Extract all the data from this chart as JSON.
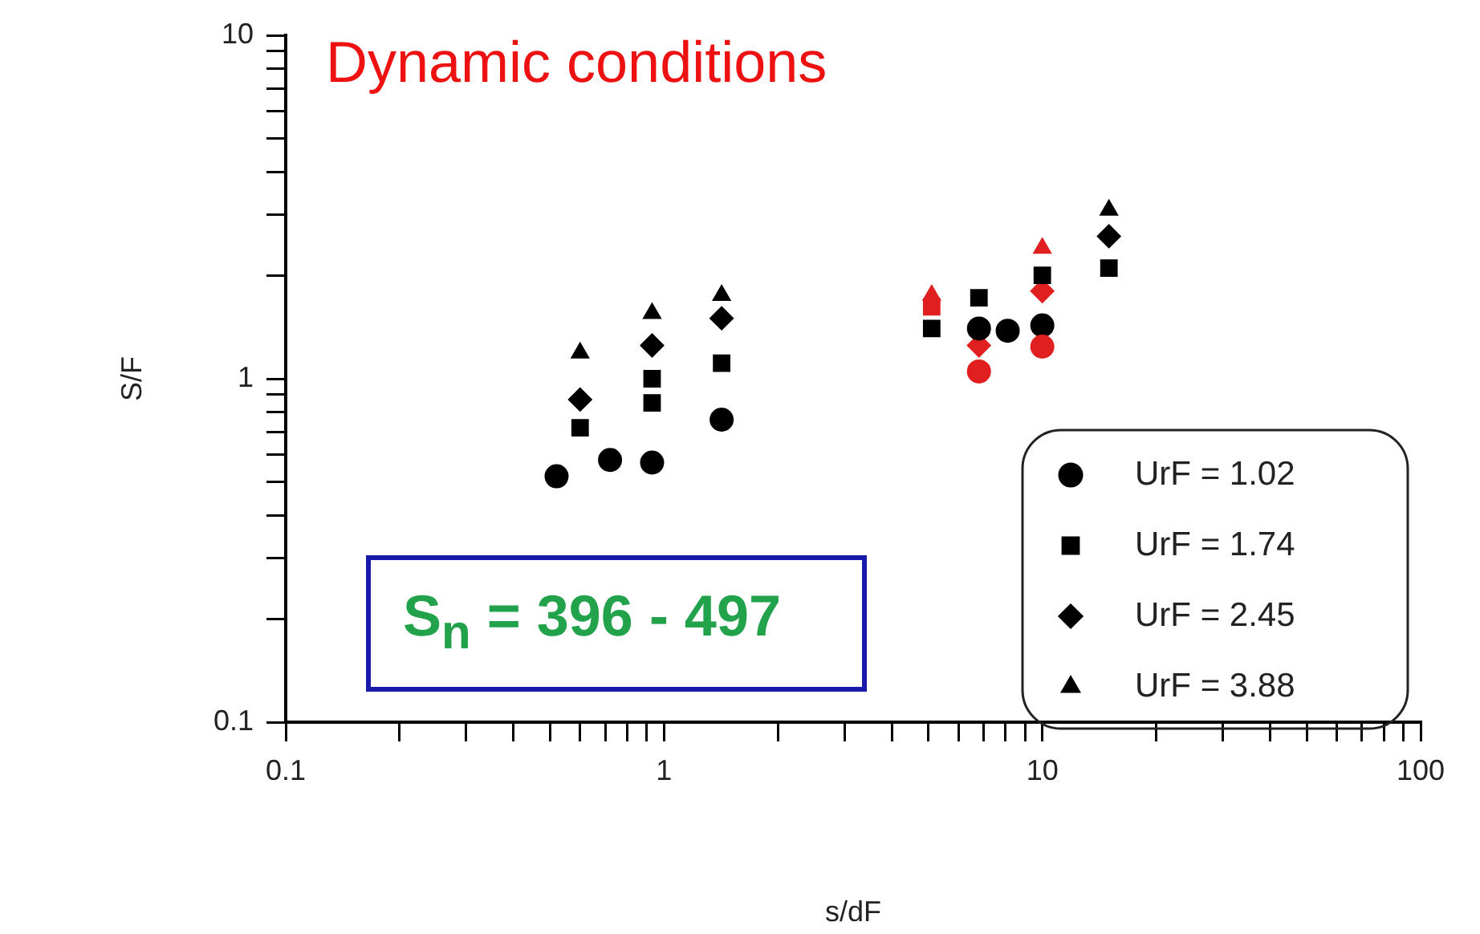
{
  "chart_data": {
    "type": "scatter",
    "xlabel": "s/dF",
    "ylabel": "S/F",
    "log": "xy",
    "grid": false,
    "legend": "bottom right",
    "xlim": [
      0.1,
      100
    ],
    "ylim": [
      0.1,
      10
    ],
    "xticks": [
      0.1,
      {
        "value": 0.2,
        "label": null
      },
      {
        "value": 0.3,
        "label": null
      },
      {
        "value": 0.4,
        "label": null
      },
      {
        "value": 0.5,
        "label": null
      },
      {
        "value": 0.6,
        "label": null
      },
      {
        "value": 0.7,
        "label": null
      },
      {
        "value": 0.8,
        "label": null
      },
      {
        "value": 0.9,
        "label": null
      },
      1,
      {
        "value": 2,
        "label": null
      },
      {
        "value": 3,
        "label": null
      },
      {
        "value": 4,
        "label": null
      },
      {
        "value": 5,
        "label": null
      },
      {
        "value": 6,
        "label": null
      },
      {
        "value": 7,
        "label": null
      },
      {
        "value": 8,
        "label": null
      },
      {
        "value": 9,
        "label": null
      },
      10,
      {
        "value": 20,
        "label": null
      },
      {
        "value": 30,
        "label": null
      },
      {
        "value": 40,
        "label": null
      },
      {
        "value": 50,
        "label": null
      },
      {
        "value": 60,
        "label": null
      },
      {
        "value": 70,
        "label": null
      },
      {
        "value": 80,
        "label": null
      },
      {
        "value": 90,
        "label": null
      },
      100
    ],
    "yticks": [
      0.1,
      {
        "value": 0.2,
        "label": null
      },
      {
        "value": 0.3,
        "label": null
      },
      {
        "value": 0.4,
        "label": null
      },
      {
        "value": 0.5,
        "label": null
      },
      {
        "value": 0.6,
        "label": null
      },
      {
        "value": 0.7,
        "label": null
      },
      {
        "value": 0.8,
        "label": null
      },
      {
        "value": 0.9,
        "label": null
      },
      1,
      {
        "value": 2,
        "label": null
      },
      {
        "value": 3,
        "label": null
      },
      {
        "value": 4,
        "label": null
      },
      {
        "value": 5,
        "label": null
      },
      {
        "value": 6,
        "label": null
      },
      {
        "value": 7,
        "label": null
      },
      {
        "value": 8,
        "label": null
      },
      {
        "value": 9,
        "label": null
      },
      10
    ],
    "annotations": [
      "Dynamic conditions",
      "S$_{n}$ = 396 - 497"
    ],
    "series": [
      {
        "name": "UrF = 1.02",
        "marker": "circle",
        "color": "#000000",
        "x": [
          0.52,
          0.72,
          0.93,
          1.42,
          6.8,
          8.1,
          6.8,
          10,
          10
        ],
        "values": [
          0.52,
          0.58,
          0.57,
          0.76,
          1.4,
          1.38,
          1.05,
          1.43,
          1.24
        ],
        "colors": [
          "#000000",
          "#000000",
          "#000000",
          "#000000",
          "#000000",
          "#000000",
          "#e02020",
          "#000000",
          "#e02020"
        ]
      },
      {
        "name": "UrF = 1.74",
        "marker": "square",
        "color": "#000000",
        "x": [
          0.6,
          0.93,
          0.93,
          1.42,
          5.1,
          5.1,
          6.8,
          10,
          15
        ],
        "values": [
          0.72,
          0.85,
          1.0,
          1.11,
          1.4,
          1.62,
          1.72,
          2.0,
          2.1
        ],
        "colors": [
          "#000000",
          "#000000",
          "#000000",
          "#000000",
          "#000000",
          "#e02020",
          "#000000",
          "#000000",
          "#000000"
        ]
      },
      {
        "name": "UrF = 2.45",
        "marker": "diamond",
        "color": "#000000",
        "x": [
          0.6,
          0.93,
          1.42,
          6.8,
          10,
          15
        ],
        "values": [
          0.87,
          1.25,
          1.5,
          1.25,
          1.8,
          2.6
        ],
        "colors": [
          "#000000",
          "#000000",
          "#000000",
          "#e02020",
          "#e02020",
          "#000000"
        ]
      },
      {
        "name": "UrF = 3.88",
        "marker": "triangle",
        "color": "#000000",
        "x": [
          0.6,
          0.93,
          1.42,
          5.1,
          10,
          15
        ],
        "values": [
          1.19,
          1.55,
          1.75,
          1.75,
          2.4,
          3.1
        ],
        "colors": [
          "#000000",
          "#000000",
          "#000000",
          "#e02020",
          "#e02020",
          "#000000"
        ]
      }
    ]
  }
}
